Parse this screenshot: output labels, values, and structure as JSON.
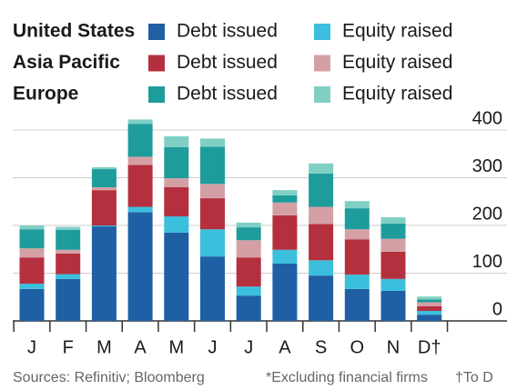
{
  "chart_data": {
    "type": "stacked_bar",
    "categories": [
      "J",
      "F",
      "M",
      "A",
      "M",
      "J",
      "J",
      "A",
      "S",
      "O",
      "N",
      "D†"
    ],
    "series": [
      {
        "group": "United States",
        "name": "Debt issued",
        "color": "#1f5fa3",
        "values": [
          67,
          88,
          198,
          228,
          185,
          135,
          53,
          120,
          95,
          67,
          63,
          13
        ]
      },
      {
        "group": "United States",
        "name": "Equity raised",
        "color": "#3bbfdc",
        "values": [
          11,
          10,
          2,
          11,
          34,
          57,
          19,
          29,
          32,
          30,
          25,
          8
        ]
      },
      {
        "group": "Asia Pacific",
        "name": "Debt issued",
        "color": "#b5303e",
        "values": [
          55,
          43,
          74,
          88,
          61,
          65,
          61,
          72,
          76,
          74,
          57,
          10
        ]
      },
      {
        "group": "Asia Pacific",
        "name": "Equity raised",
        "color": "#d4a0a6",
        "values": [
          19,
          8,
          6,
          17,
          19,
          30,
          36,
          27,
          36,
          21,
          27,
          8
        ]
      },
      {
        "group": "Europe",
        "name": "Debt issued",
        "color": "#1e9c9c",
        "values": [
          40,
          42,
          38,
          69,
          65,
          78,
          27,
          15,
          70,
          44,
          32,
          6
        ]
      },
      {
        "group": "Europe",
        "name": "Equity raised",
        "color": "#7fcfc5",
        "values": [
          8,
          6,
          4,
          9,
          23,
          17,
          10,
          11,
          21,
          15,
          13,
          6
        ]
      }
    ],
    "ylim": [
      0,
      420
    ],
    "yticks": [
      0,
      100,
      200,
      300,
      400
    ],
    "grid": true,
    "footnotes": [
      "Sources: Refinitiv; Bloomberg",
      "*Excluding financial firms",
      "†To D"
    ]
  }
}
